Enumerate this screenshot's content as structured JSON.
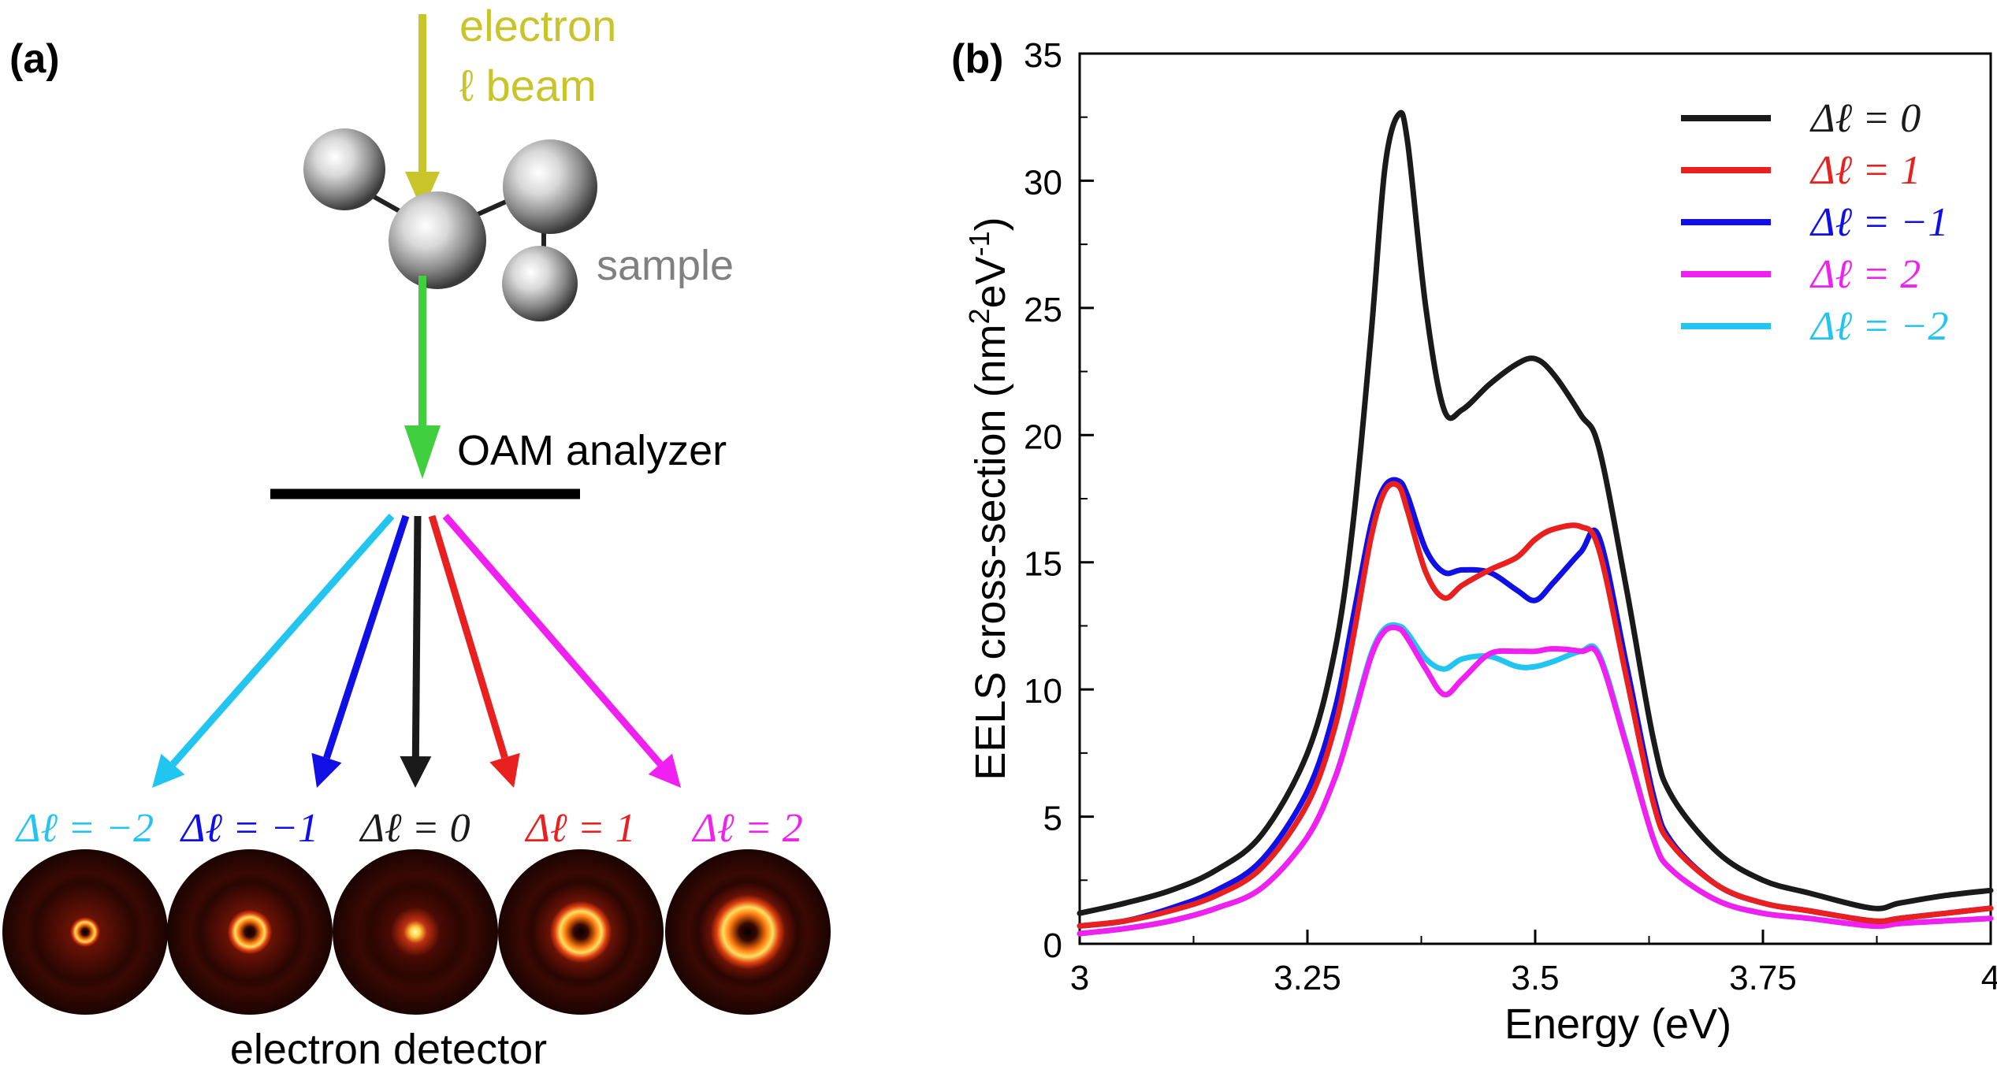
{
  "panel_a": {
    "label": "(a)",
    "beam_label_line1": "electron",
    "beam_label_line2": "ℓ beam",
    "sample_label": "sample",
    "analyzer_label": "OAM analyzer",
    "detector_label": "electron detector",
    "channels": [
      {
        "label": "Δℓ = −2",
        "color": "#22c4f0",
        "delta_l": -2
      },
      {
        "label": "Δℓ = −1",
        "color": "#1010e6",
        "delta_l": -1
      },
      {
        "label": "Δℓ = 0",
        "color": "#1a1a1a",
        "delta_l": 0
      },
      {
        "label": "Δℓ = 1",
        "color": "#e82020",
        "delta_l": 1
      },
      {
        "label": "Δℓ = 2",
        "color": "#f020f0",
        "delta_l": 2
      }
    ],
    "colors": {
      "beam_in": "#c8c42a",
      "beam_out": "#3fcf3f",
      "analyzer": "#000000",
      "sample_label": "#808080"
    }
  },
  "chart_data": {
    "type": "line",
    "panel_label": "(b)",
    "title": "",
    "xlabel": "Energy (eV)",
    "ylabel": "EELS cross-section (nm²eV⁻¹)",
    "ylabel_parts": {
      "main": "EELS cross-section (nm",
      "sup1": "2",
      "mid": "eV",
      "sup2": "-1",
      "end": ")"
    },
    "xlim": [
      3,
      4
    ],
    "ylim": [
      0,
      35
    ],
    "xticks": [
      3,
      3.25,
      3.5,
      3.75,
      4
    ],
    "xtick_labels": [
      "3",
      "3.25",
      "3.5",
      "3.75",
      "4"
    ],
    "yticks": [
      0,
      5,
      10,
      15,
      20,
      25,
      30,
      35
    ],
    "ytick_labels": [
      "0",
      "5",
      "10",
      "15",
      "20",
      "25",
      "30",
      "35"
    ],
    "legend_position": "top-right",
    "x": [
      3.0,
      3.05,
      3.1,
      3.15,
      3.2,
      3.25,
      3.28,
      3.3,
      3.32,
      3.335,
      3.35,
      3.36,
      3.38,
      3.4,
      3.42,
      3.45,
      3.48,
      3.5,
      3.52,
      3.55,
      3.57,
      3.6,
      3.63,
      3.65,
      3.7,
      3.75,
      3.8,
      3.87,
      3.9,
      3.95,
      4.0
    ],
    "series": [
      {
        "name": "Δℓ = 0",
        "color": "#1a1a1a",
        "values": [
          1.2,
          1.6,
          2.1,
          2.9,
          4.3,
          7.5,
          11.5,
          16.5,
          24.0,
          30.5,
          32.6,
          31.5,
          25.0,
          21.0,
          21.0,
          22.0,
          22.8,
          23.0,
          22.4,
          20.8,
          19.5,
          14.0,
          8.0,
          5.8,
          3.6,
          2.5,
          2.0,
          1.4,
          1.6,
          1.9,
          2.1
        ]
      },
      {
        "name": "Δℓ = 1",
        "color": "#e82020",
        "values": [
          0.7,
          0.9,
          1.3,
          1.9,
          3.0,
          5.5,
          8.5,
          12.0,
          16.0,
          17.8,
          18.0,
          17.0,
          14.6,
          13.6,
          14.1,
          14.7,
          15.2,
          15.9,
          16.3,
          16.4,
          15.5,
          10.5,
          5.5,
          3.9,
          2.3,
          1.6,
          1.3,
          0.9,
          1.0,
          1.2,
          1.4
        ]
      },
      {
        "name": "Δℓ = −1",
        "color": "#1010e6",
        "values": [
          0.7,
          0.9,
          1.4,
          2.1,
          3.3,
          6.0,
          9.2,
          12.8,
          16.5,
          18.0,
          18.2,
          17.6,
          15.5,
          14.6,
          14.7,
          14.6,
          13.9,
          13.5,
          14.2,
          15.4,
          16.0,
          11.0,
          5.8,
          4.0,
          2.3,
          1.6,
          1.3,
          0.9,
          1.0,
          1.2,
          1.4
        ]
      },
      {
        "name": "Δℓ = 2",
        "color": "#f020f0",
        "values": [
          0.4,
          0.6,
          0.9,
          1.4,
          2.2,
          4.2,
          6.5,
          8.8,
          11.3,
          12.3,
          12.4,
          12.0,
          10.8,
          9.8,
          10.4,
          11.4,
          11.5,
          11.5,
          11.6,
          11.5,
          11.3,
          7.8,
          4.1,
          2.9,
          1.7,
          1.2,
          1.0,
          0.7,
          0.8,
          0.9,
          1.0
        ]
      },
      {
        "name": "Δℓ = −2",
        "color": "#22c4f0",
        "values": [
          0.4,
          0.6,
          0.9,
          1.4,
          2.2,
          4.2,
          6.5,
          8.9,
          11.4,
          12.4,
          12.5,
          12.2,
          11.2,
          10.8,
          11.2,
          11.3,
          10.9,
          10.9,
          11.1,
          11.5,
          11.4,
          7.9,
          4.1,
          2.9,
          1.7,
          1.2,
          1.0,
          0.7,
          0.8,
          0.9,
          1.0
        ]
      }
    ]
  }
}
